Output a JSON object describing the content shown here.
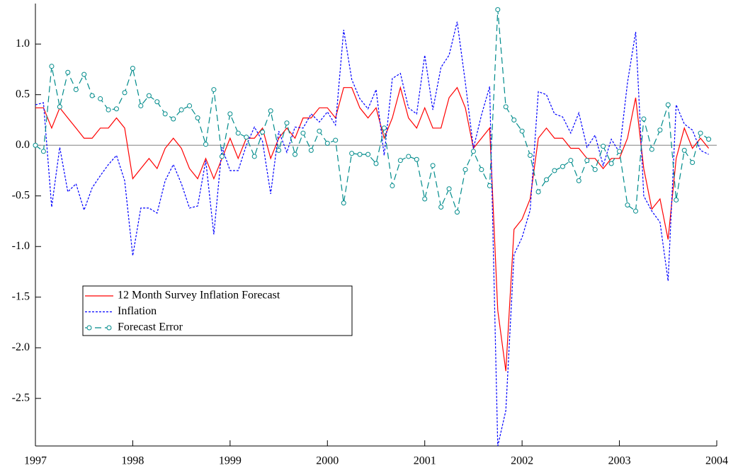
{
  "chart_data": {
    "type": "line",
    "x": [
      1997,
      1997.083,
      1997.167,
      1997.25,
      1997.333,
      1997.417,
      1997.5,
      1997.583,
      1997.667,
      1997.75,
      1997.833,
      1997.917,
      1998,
      1998.083,
      1998.167,
      1998.25,
      1998.333,
      1998.417,
      1998.5,
      1998.583,
      1998.667,
      1998.75,
      1998.833,
      1998.917,
      1999,
      1999.083,
      1999.167,
      1999.25,
      1999.333,
      1999.417,
      1999.5,
      1999.583,
      1999.667,
      1999.75,
      1999.833,
      1999.917,
      2000,
      2000.083,
      2000.167,
      2000.25,
      2000.333,
      2000.417,
      2000.5,
      2000.583,
      2000.667,
      2000.75,
      2000.833,
      2000.917,
      2001,
      2001.083,
      2001.167,
      2001.25,
      2001.333,
      2001.417,
      2001.5,
      2001.583,
      2001.667,
      2001.75,
      2001.833,
      2001.917,
      2002,
      2002.083,
      2002.167,
      2002.25,
      2002.333,
      2002.417,
      2002.5,
      2002.583,
      2002.667,
      2002.75,
      2002.833,
      2002.917,
      2003,
      2003.083,
      2003.167,
      2003.25,
      2003.333,
      2003.417,
      2003.5,
      2003.583,
      2003.667,
      2003.75,
      2003.833,
      2003.917
    ],
    "series": [
      {
        "name": "12 Month Survey Inflation Forecast",
        "color": "#ff0000",
        "dash": "solid",
        "marker": "none",
        "values": [
          0.37,
          0.37,
          0.17,
          0.37,
          0.27,
          0.17,
          0.07,
          0.07,
          0.17,
          0.17,
          0.27,
          0.17,
          -0.33,
          -0.23,
          -0.13,
          -0.23,
          -0.03,
          0.07,
          -0.03,
          -0.23,
          -0.33,
          -0.13,
          -0.33,
          -0.13,
          0.07,
          -0.13,
          0.07,
          0.07,
          0.17,
          -0.13,
          0.07,
          0.17,
          0.07,
          0.27,
          0.27,
          0.37,
          0.37,
          0.27,
          0.57,
          0.57,
          0.37,
          0.27,
          0.37,
          0.07,
          0.27,
          0.57,
          0.27,
          0.17,
          0.37,
          0.17,
          0.17,
          0.47,
          0.57,
          0.37,
          -0.03,
          0.07,
          0.17,
          -1.63,
          -2.23,
          -0.83,
          -0.73,
          -0.53,
          0.07,
          0.17,
          0.07,
          0.07,
          -0.03,
          -0.03,
          -0.13,
          -0.13,
          -0.23,
          -0.13,
          -0.13,
          0.07,
          0.47,
          -0.23,
          -0.63,
          -0.53,
          -0.93,
          -0.13,
          0.17,
          -0.03,
          0.07,
          -0.03
        ]
      },
      {
        "name": "Inflation",
        "color": "#0000ff",
        "dash": "dotted",
        "marker": "none",
        "values": [
          0.4,
          0.42,
          -0.61,
          -0.02,
          -0.46,
          -0.38,
          -0.64,
          -0.42,
          -0.3,
          -0.19,
          -0.1,
          -0.35,
          -1.09,
          -0.62,
          -0.62,
          -0.67,
          -0.35,
          -0.19,
          -0.38,
          -0.62,
          -0.6,
          -0.15,
          -0.88,
          -0.02,
          -0.25,
          -0.25,
          0,
          0.18,
          0.04,
          -0.48,
          0.14,
          -0.07,
          0.18,
          0.17,
          0.31,
          0.23,
          0.33,
          0.2,
          1.14,
          0.65,
          0.46,
          0.36,
          0.55,
          -0.1,
          0.66,
          0.71,
          0.37,
          0.31,
          0.89,
          0.35,
          0.77,
          0.89,
          1.22,
          0.62,
          -0.03,
          0.3,
          0.58,
          -2.97,
          -2.62,
          -1.08,
          -0.91,
          -0.64,
          0.53,
          0.5,
          0.31,
          0.28,
          0.12,
          0.32,
          -0.02,
          0.1,
          -0.2,
          0.06,
          -0.07,
          0.62,
          1.12,
          -0.5,
          -0.65,
          -0.76,
          -1.34,
          0.4,
          0.21,
          0.15,
          -0.05,
          -0.09
        ]
      },
      {
        "name": "Forecast Error",
        "color": "#008b8b",
        "dash": "dashed",
        "marker": "circle",
        "values": [
          0,
          -0.06,
          0.78,
          0.38,
          0.72,
          0.55,
          0.7,
          0.49,
          0.46,
          0.35,
          0.36,
          0.52,
          0.76,
          0.39,
          0.49,
          0.43,
          0.31,
          0.26,
          0.35,
          0.39,
          0.27,
          0.01,
          0.55,
          -0.11,
          0.31,
          0.12,
          0.08,
          -0.11,
          0.13,
          0.34,
          -0.05,
          0.22,
          -0.09,
          0.12,
          -0.05,
          0.14,
          0.02,
          0.05,
          -0.57,
          -0.08,
          -0.09,
          -0.09,
          -0.18,
          0.17,
          -0.4,
          -0.15,
          -0.11,
          -0.14,
          -0.53,
          -0.2,
          -0.61,
          -0.43,
          -0.66,
          -0.24,
          -0.06,
          -0.24,
          -0.4,
          1.34,
          0.38,
          0.25,
          0.14,
          -0.1,
          -0.46,
          -0.34,
          -0.25,
          -0.21,
          -0.15,
          -0.35,
          -0.15,
          -0.24,
          -0.01,
          -0.18,
          -0.06,
          -0.59,
          -0.65,
          0.26,
          -0.04,
          0.15,
          0.4,
          -0.54,
          -0.05,
          -0.17,
          0.12,
          0.06
        ]
      }
    ],
    "xlim": [
      1997,
      2004
    ],
    "xticks": [
      1997,
      1998,
      1999,
      2000,
      2001,
      2002,
      2003,
      2004
    ],
    "ylim": [
      -2.97,
      1.4
    ],
    "yticks": [
      {
        "value": 1.0,
        "label": "1.0"
      },
      0.5,
      {
        "value": 0,
        "label": "0.0"
      },
      -0.5,
      {
        "value": -1.0,
        "label": "-1.0"
      },
      -1.5,
      {
        "value": -2.0,
        "label": "-2.0"
      },
      -2.5
    ],
    "zero_line": true,
    "grid": false,
    "legend": "lower-left"
  }
}
